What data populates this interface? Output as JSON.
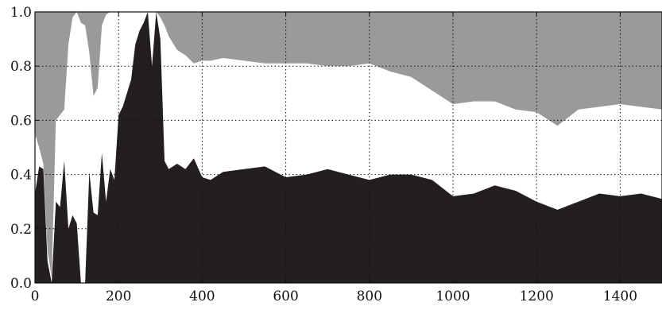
{
  "chart_data": {
    "type": "area",
    "stacked": true,
    "title": "",
    "xlabel": "",
    "ylabel": "",
    "xlim": [
      0,
      1500
    ],
    "ylim": [
      0,
      1
    ],
    "grid": true,
    "grid_style": "dotted",
    "x_ticks": [
      0,
      200,
      400,
      600,
      800,
      1000,
      1200,
      1400
    ],
    "x_tick_labels": [
      "0",
      "200",
      "400",
      "600",
      "800",
      "1000",
      "1200",
      "1400"
    ],
    "y_ticks": [
      0,
      0.2,
      0.4,
      0.6,
      0.8,
      1.0
    ],
    "y_tick_labels": [
      "0.0",
      "0.2",
      "0.4",
      "0.6",
      "0.8",
      "1.0"
    ],
    "x": [
      0,
      10,
      20,
      30,
      40,
      50,
      60,
      70,
      80,
      90,
      100,
      110,
      120,
      130,
      140,
      150,
      160,
      170,
      180,
      190,
      200,
      210,
      220,
      230,
      240,
      250,
      260,
      270,
      280,
      290,
      300,
      310,
      320,
      340,
      360,
      380,
      400,
      420,
      450,
      500,
      550,
      600,
      650,
      700,
      750,
      800,
      850,
      900,
      950,
      1000,
      1050,
      1100,
      1150,
      1200,
      1250,
      1300,
      1350,
      1400,
      1450,
      1500
    ],
    "series": [
      {
        "color": "#231f20",
        "values": [
          0.33,
          0.43,
          0.42,
          0.08,
          0.0,
          0.3,
          0.28,
          0.45,
          0.2,
          0.25,
          0.22,
          0.0,
          0.0,
          0.41,
          0.26,
          0.25,
          0.48,
          0.3,
          0.42,
          0.38,
          0.62,
          0.65,
          0.7,
          0.75,
          0.88,
          0.93,
          0.96,
          1.0,
          0.8,
          1.0,
          0.9,
          0.45,
          0.42,
          0.44,
          0.42,
          0.46,
          0.39,
          0.38,
          0.41,
          0.42,
          0.43,
          0.39,
          0.4,
          0.42,
          0.4,
          0.38,
          0.4,
          0.4,
          0.38,
          0.32,
          0.33,
          0.36,
          0.34,
          0.3,
          0.27,
          0.3,
          0.33,
          0.32,
          0.33,
          0.31
        ]
      },
      {
        "color": "#ffffff",
        "values": [
          0.55,
          0.5,
          0.44,
          0.12,
          0.02,
          0.6,
          0.62,
          0.64,
          0.88,
          0.98,
          1.0,
          0.96,
          0.95,
          0.85,
          0.69,
          0.72,
          0.95,
          0.99,
          1.0,
          1.0,
          1.0,
          1.0,
          1.0,
          1.0,
          1.0,
          1.0,
          1.0,
          1.0,
          1.0,
          1.0,
          0.98,
          0.95,
          0.91,
          0.86,
          0.84,
          0.81,
          0.82,
          0.82,
          0.83,
          0.82,
          0.81,
          0.81,
          0.81,
          0.8,
          0.8,
          0.81,
          0.78,
          0.76,
          0.71,
          0.66,
          0.67,
          0.67,
          0.64,
          0.63,
          0.58,
          0.64,
          0.65,
          0.66,
          0.65,
          0.64
        ]
      },
      {
        "color": "#9a9a9a",
        "values": [
          1.0,
          1.0,
          1.0,
          1.0,
          1.0,
          1.0,
          1.0,
          1.0,
          1.0,
          1.0,
          1.0,
          1.0,
          1.0,
          1.0,
          1.0,
          1.0,
          1.0,
          1.0,
          1.0,
          1.0,
          1.0,
          1.0,
          1.0,
          1.0,
          1.0,
          1.0,
          1.0,
          1.0,
          1.0,
          1.0,
          1.0,
          1.0,
          1.0,
          1.0,
          1.0,
          1.0,
          1.0,
          1.0,
          1.0,
          1.0,
          1.0,
          1.0,
          1.0,
          1.0,
          1.0,
          1.0,
          1.0,
          1.0,
          1.0,
          1.0,
          1.0,
          1.0,
          1.0,
          1.0,
          1.0,
          1.0,
          1.0,
          1.0,
          1.0,
          1.0
        ]
      }
    ]
  }
}
